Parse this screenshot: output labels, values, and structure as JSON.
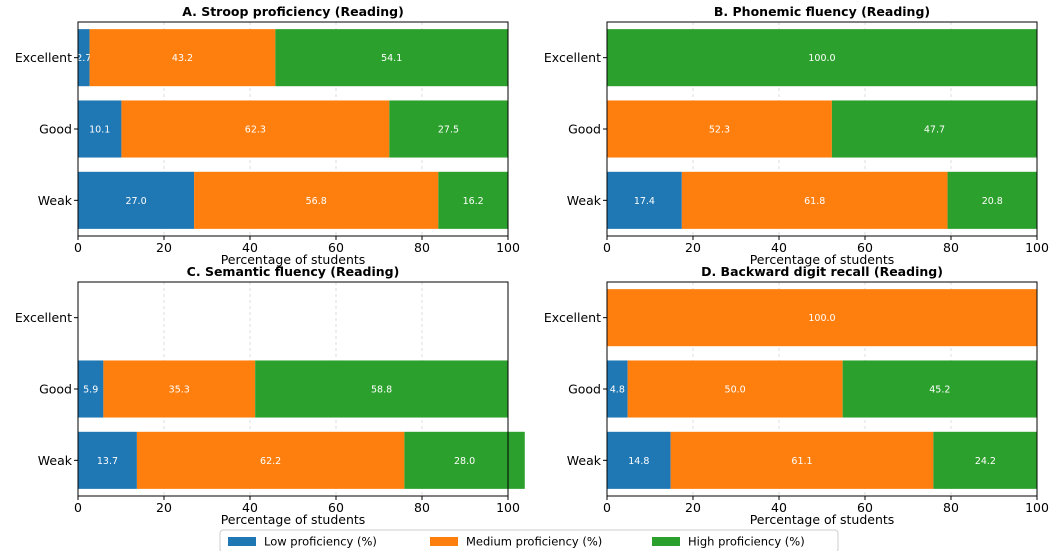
{
  "chart_data": [
    {
      "type": "bar",
      "orientation": "horizontal",
      "stacked": true,
      "title": "A. Stroop proficiency (Reading)",
      "xlabel": "Percentage of students",
      "ylabel": "",
      "xlim": [
        0,
        100
      ],
      "xticks": [
        "0",
        "20",
        "40",
        "60",
        "80",
        "100"
      ],
      "categories": [
        "Excellent",
        "Good",
        "Weak"
      ],
      "series": [
        {
          "name": "Low proficiency (%)",
          "values": [
            2.7,
            10.1,
            27.0
          ],
          "labels": [
            "2.7",
            "10.1",
            "27.0"
          ]
        },
        {
          "name": "Medium proficiency (%)",
          "values": [
            43.2,
            62.3,
            56.8
          ],
          "labels": [
            "43.2",
            "62.3",
            "56.8"
          ]
        },
        {
          "name": "High proficiency (%)",
          "values": [
            54.1,
            27.5,
            16.2
          ],
          "labels": [
            "54.1",
            "27.5",
            "16.2"
          ]
        }
      ],
      "grid": "x-dashed"
    },
    {
      "type": "bar",
      "orientation": "horizontal",
      "stacked": true,
      "title": "B. Phonemic fluency (Reading)",
      "xlabel": "Percentage of students",
      "ylabel": "",
      "xlim": [
        0,
        100
      ],
      "xticks": [
        "0",
        "20",
        "40",
        "60",
        "80",
        "100"
      ],
      "categories": [
        "Excellent",
        "Good",
        "Weak"
      ],
      "series": [
        {
          "name": "Low proficiency (%)",
          "values": [
            0,
            0,
            17.4
          ],
          "labels": [
            "",
            "",
            "17.4"
          ]
        },
        {
          "name": "Medium proficiency (%)",
          "values": [
            0,
            52.3,
            61.8
          ],
          "labels": [
            "",
            "52.3",
            "61.8"
          ]
        },
        {
          "name": "High proficiency (%)",
          "values": [
            100.0,
            47.7,
            20.8
          ],
          "labels": [
            "100.0",
            "47.7",
            "20.8"
          ]
        }
      ],
      "grid": "x-dashed"
    },
    {
      "type": "bar",
      "orientation": "horizontal",
      "stacked": true,
      "title": "C. Semantic fluency (Reading)",
      "xlabel": "Percentage of students",
      "ylabel": "",
      "xlim": [
        0,
        100
      ],
      "xticks": [
        "0",
        "20",
        "40",
        "60",
        "80",
        "100"
      ],
      "categories": [
        "Excellent",
        "Good",
        "Weak"
      ],
      "series": [
        {
          "name": "Low proficiency (%)",
          "values": [
            0,
            5.9,
            13.7
          ],
          "labels": [
            "",
            "5.9",
            "13.7"
          ]
        },
        {
          "name": "Medium proficiency (%)",
          "values": [
            0,
            35.3,
            62.2
          ],
          "labels": [
            "",
            "35.3",
            "62.2"
          ]
        },
        {
          "name": "High proficiency (%)",
          "values": [
            0,
            58.8,
            28.0
          ],
          "labels": [
            "",
            "58.8",
            "28.0"
          ]
        }
      ],
      "grid": "x-dashed"
    },
    {
      "type": "bar",
      "orientation": "horizontal",
      "stacked": true,
      "title": "D. Backward digit recall (Reading)",
      "xlabel": "Percentage of students",
      "ylabel": "",
      "xlim": [
        0,
        100
      ],
      "xticks": [
        "0",
        "20",
        "40",
        "60",
        "80",
        "100"
      ],
      "categories": [
        "Excellent",
        "Good",
        "Weak"
      ],
      "series": [
        {
          "name": "Low proficiency (%)",
          "values": [
            0,
            4.8,
            14.8
          ],
          "labels": [
            "",
            "4.8",
            "14.8"
          ]
        },
        {
          "name": "Medium proficiency (%)",
          "values": [
            100.0,
            50.0,
            61.1
          ],
          "labels": [
            "100.0",
            "50.0",
            "61.1"
          ]
        },
        {
          "name": "High proficiency (%)",
          "values": [
            0,
            45.2,
            24.2
          ],
          "labels": [
            "",
            "45.2",
            "24.2"
          ]
        }
      ],
      "grid": "x-dashed"
    }
  ],
  "legend": {
    "placement": "bottom-center",
    "items": [
      {
        "label": "Low proficiency (%)",
        "color": "#1f77b4"
      },
      {
        "label": "Medium proficiency (%)",
        "color": "#ff7f0e"
      },
      {
        "label": "High proficiency (%)",
        "color": "#2ca02c"
      }
    ]
  },
  "colors": {
    "low": "#1f77b4",
    "medium": "#ff7f0e",
    "high": "#2ca02c"
  }
}
